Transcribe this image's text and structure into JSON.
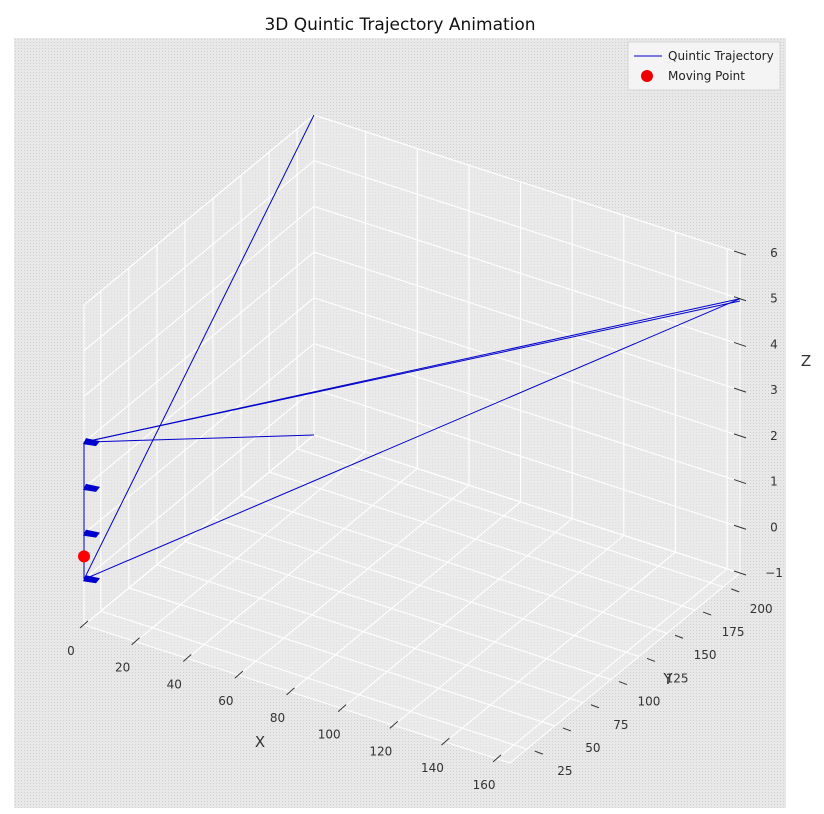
{
  "chart_data": {
    "type": "line",
    "projection": "3d",
    "title": "3D Quintic Trajectory Animation",
    "xlabel": "X",
    "ylabel": "Y",
    "zlabel": "Z",
    "xlim": [
      0,
      165
    ],
    "ylim": [
      10,
      215
    ],
    "zlim": [
      -1,
      6
    ],
    "xticks": [
      "0",
      "20",
      "40",
      "60",
      "80",
      "100",
      "120",
      "140",
      "160"
    ],
    "yticks": [
      "25",
      "50",
      "75",
      "100",
      "125",
      "150",
      "175",
      "200"
    ],
    "zticks": [
      "−1",
      "0",
      "1",
      "2",
      "3",
      "4",
      "5",
      "6"
    ],
    "grid": true,
    "legend_position": "top-right",
    "legend": [
      {
        "label": "Quintic Trajectory",
        "marker": "line"
      },
      {
        "label": "Moving Point",
        "marker": "dot"
      }
    ],
    "series": [
      {
        "name": "Quintic Trajectory",
        "color": "#0000cc",
        "segments": [
          [
            [
              0,
              10,
              0
            ],
            [
              0,
              215,
              6
            ]
          ],
          [
            [
              0,
              10,
              0
            ],
            [
              165,
              215,
              5
            ]
          ],
          [
            [
              165,
              215,
              5
            ],
            [
              0,
              10,
              3
            ]
          ],
          [
            [
              0,
              10,
              3
            ],
            [
              165,
              215,
              4.95
            ]
          ],
          [
            [
              0,
              10,
              3
            ],
            [
              0,
              215,
              -1
            ]
          ],
          [
            [
              0,
              10,
              3
            ],
            [
              0,
              10,
              0
            ]
          ]
        ],
        "markers": [
          [
            0,
            10,
            0
          ],
          [
            0,
            10,
            1
          ],
          [
            0,
            10,
            2
          ],
          [
            0,
            10,
            3
          ]
        ]
      },
      {
        "name": "Moving Point",
        "color": "#ff0000",
        "point": [
          0,
          10,
          0.5
        ]
      }
    ]
  }
}
